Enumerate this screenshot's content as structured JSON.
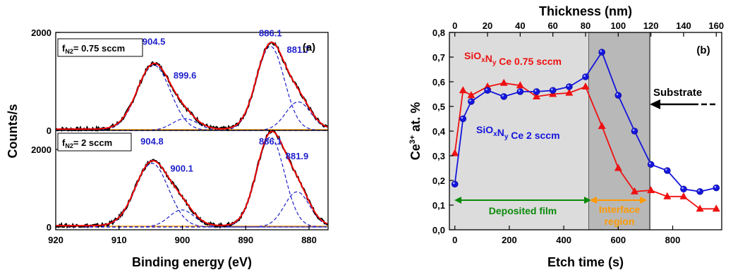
{
  "chart_data": [
    {
      "type": "line",
      "panel_label": "(a)",
      "xlabel": "Binding energy (eV)",
      "ylabel": "Counts/s",
      "xlim": [
        920,
        877
      ],
      "x_ticks": [
        920,
        910,
        900,
        890,
        880
      ],
      "subpanels": [
        {
          "condition": {
            "main": "f",
            "sub": "N2",
            "rest": "= 0.75 sccm"
          },
          "y_ticks": [
            0,
            2000
          ],
          "ylim": [
            0,
            2000
          ],
          "peak_labels": [
            {
              "text": "904.5",
              "x": 904.5,
              "y": 1680
            },
            {
              "text": "899.6",
              "x": 899.6,
              "y": 1020
            },
            {
              "text": "886.1",
              "x": 886.1,
              "y": 1850
            },
            {
              "text": "881.7",
              "x": 881.7,
              "y": 1520
            }
          ],
          "peaks": [
            {
              "center": 904.5,
              "height": 1280,
              "width": 2.6
            },
            {
              "center": 899.6,
              "height": 230,
              "width": 2.0
            },
            {
              "center": 886.1,
              "height": 1650,
              "width": 2.2
            },
            {
              "center": 881.7,
              "height": 560,
              "width": 2.0
            }
          ]
        },
        {
          "condition": {
            "main": "f",
            "sub": "N2",
            "rest": "= 2 sccm"
          },
          "y_ticks": [
            0,
            2000
          ],
          "ylim": [
            0,
            2000
          ],
          "peak_labels": [
            {
              "text": "904.8",
              "x": 904.8,
              "y": 1640
            },
            {
              "text": "900.1",
              "x": 900.1,
              "y": 1100
            },
            {
              "text": "886.1",
              "x": 886.1,
              "y": 1640
            },
            {
              "text": "881.9",
              "x": 881.9,
              "y": 1350
            }
          ],
          "peaks": [
            {
              "center": 904.8,
              "height": 1270,
              "width": 2.6
            },
            {
              "center": 900.1,
              "height": 340,
              "width": 2.0
            },
            {
              "center": 886.1,
              "height": 1790,
              "width": 2.2
            },
            {
              "center": 881.9,
              "height": 700,
              "width": 2.0
            }
          ]
        }
      ],
      "colors": {
        "data": "#000000",
        "fit": "#ff0000",
        "components": "#1f1fcc",
        "baseline": "#ff9900"
      }
    },
    {
      "type": "line",
      "panel_label": "(b)",
      "xlabel": "Etch time (s)",
      "ylabel": {
        "main": "Ce",
        "sup": "3+",
        "rest": " at. %"
      },
      "top_xlabel": "Thickness (nm)",
      "xlim": [
        -20,
        980
      ],
      "ylim": [
        0,
        0.8
      ],
      "x_ticks": [
        0,
        200,
        400,
        600,
        800
      ],
      "y_ticks": [
        "0,0",
        "0,1",
        "0,2",
        "0,3",
        "0,4",
        "0,5",
        "0,6",
        "0,7",
        "0,8"
      ],
      "top_ticks": [
        0,
        20,
        40,
        60,
        80,
        100,
        120,
        140,
        160
      ],
      "top_scale_s_per_nm": 6.0,
      "regions": [
        {
          "from": -20,
          "to": 492,
          "color": "#dcdcdc"
        },
        {
          "from": 492,
          "to": 716,
          "color": "#b8b8b8"
        }
      ],
      "series": [
        {
          "name": {
            "parts": [
              [
                "SiO",
                ""
              ],
              [
                "x",
                "sub"
              ],
              [
                "N",
                ""
              ],
              [
                "y",
                "sub"
              ],
              [
                " Ce 0.75 sccm",
                ""
              ]
            ]
          },
          "color": "#ee1111",
          "marker": "triangle",
          "x": [
            0,
            30,
            60,
            120,
            180,
            240,
            300,
            360,
            420,
            480,
            540,
            600,
            660,
            720,
            780,
            840,
            900,
            960
          ],
          "y": [
            0.31,
            0.565,
            0.545,
            0.58,
            0.595,
            0.585,
            0.54,
            0.55,
            0.555,
            0.58,
            0.42,
            0.25,
            0.155,
            0.16,
            0.135,
            0.135,
            0.085,
            0.085
          ]
        },
        {
          "name": {
            "parts": [
              [
                "SiO",
                ""
              ],
              [
                "x",
                "sub"
              ],
              [
                "N",
                ""
              ],
              [
                "y",
                "sub"
              ],
              [
                " Ce 2 sccm",
                ""
              ]
            ]
          },
          "color": "#1515dd",
          "marker": "circle",
          "x": [
            0,
            30,
            60,
            120,
            180,
            240,
            300,
            360,
            420,
            480,
            540,
            600,
            660,
            720,
            780,
            840,
            900,
            960
          ],
          "y": [
            0.185,
            0.45,
            0.52,
            0.565,
            0.54,
            0.56,
            0.56,
            0.565,
            0.58,
            0.62,
            0.72,
            0.545,
            0.4,
            0.265,
            0.24,
            0.165,
            0.155,
            0.17
          ]
        }
      ],
      "annotations": [
        {
          "text": "Deposited film",
          "color": "#0a8a0a"
        },
        {
          "lines": [
            "Interface",
            "region"
          ],
          "color": "#ff9900"
        },
        {
          "text": "Substrate",
          "color": "#000000"
        }
      ]
    }
  ]
}
